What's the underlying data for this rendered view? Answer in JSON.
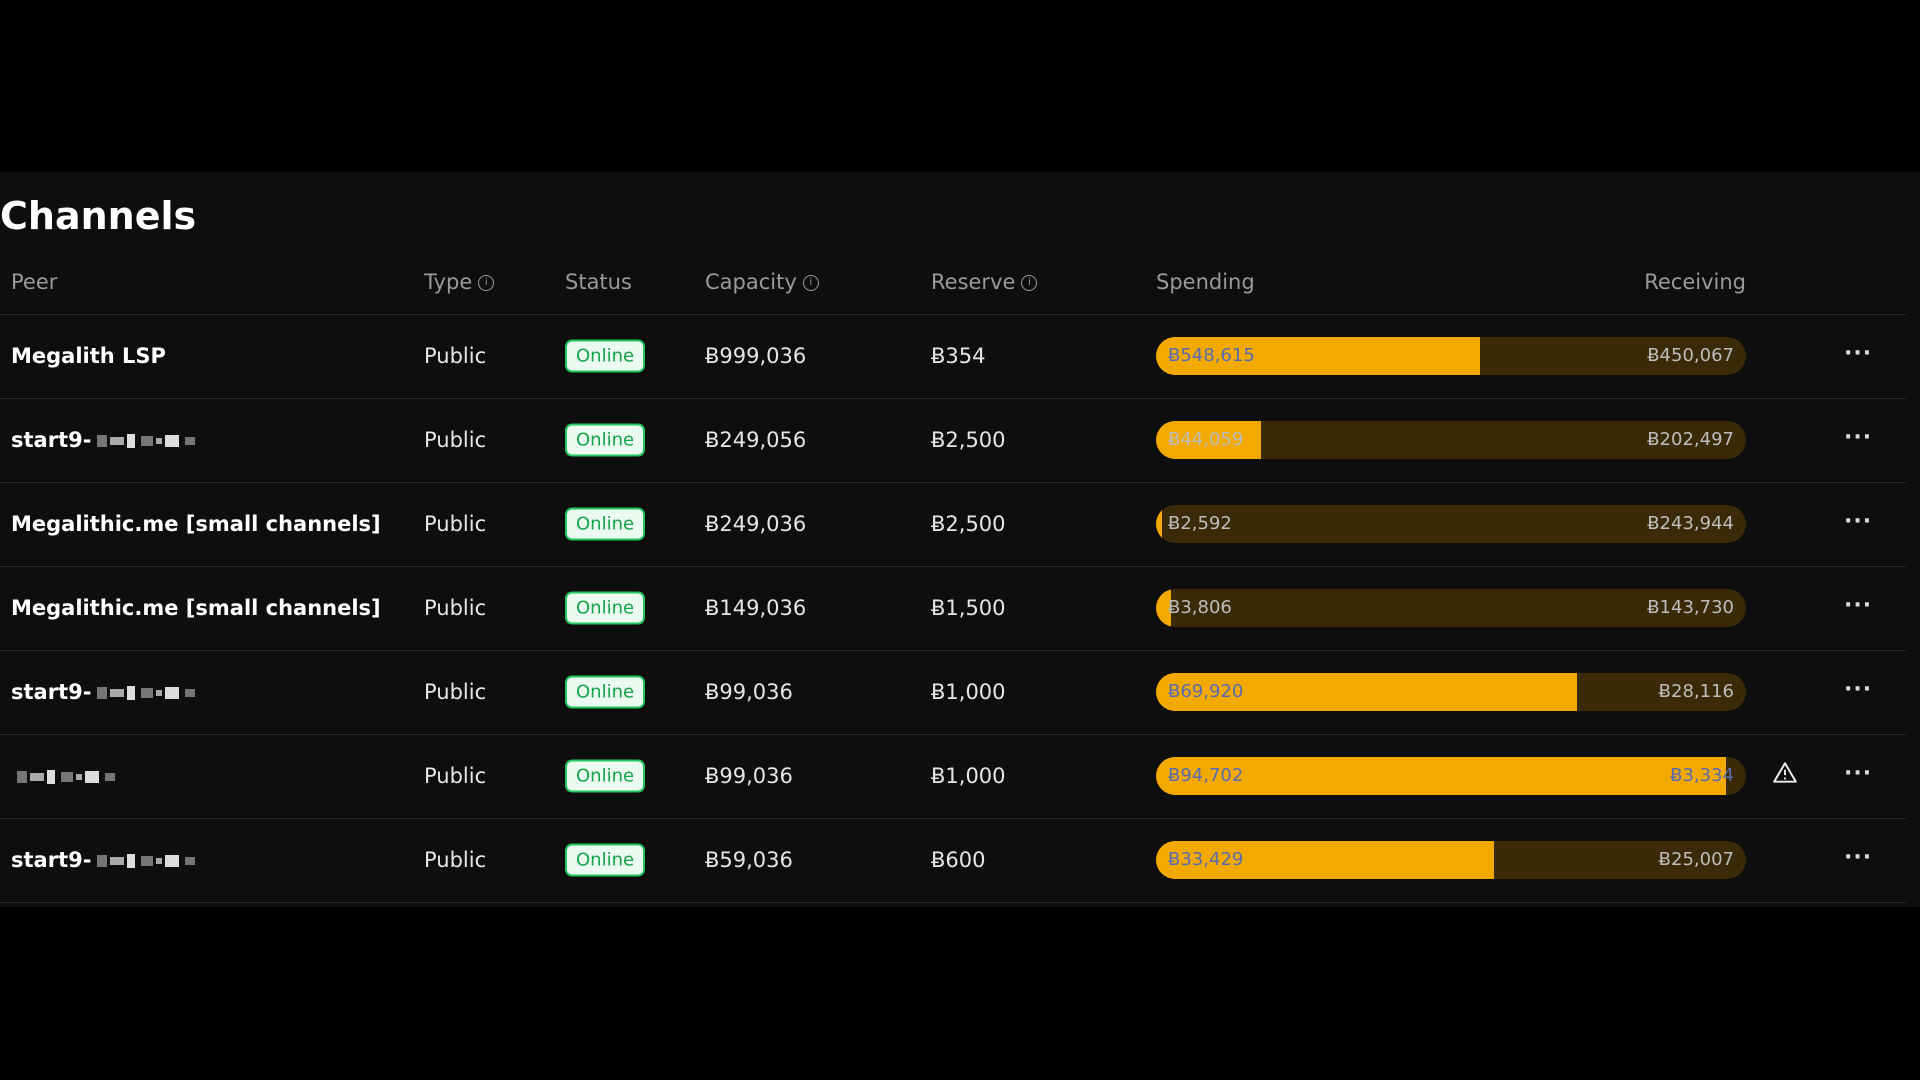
{
  "title": "Channels",
  "table": {
    "headers": [
      "Peer",
      "Type",
      "Status",
      "Capacity",
      "Reserve",
      "Spending",
      "Receiving"
    ],
    "rows": [
      {
        "peer": "Megalith LSP",
        "type": "Public",
        "status": "Online",
        "capacity": "Ƀ999,036",
        "reserve": "Ƀ354",
        "spending": {
          "value": 548615,
          "label": "Ƀ548,615"
        },
        "receiving": {
          "value": 450067,
          "label": "Ƀ450,067"
        }
      },
      {
        "peer": "start9-",
        "type": "Public",
        "status": "Online",
        "capacity": "Ƀ249,056",
        "reserve": "Ƀ2,500",
        "spending": {
          "value": 44059,
          "label": "Ƀ44,059"
        },
        "receiving": {
          "value": 202497,
          "label": "Ƀ202,497"
        }
      },
      {
        "peer": "Megalithic.me [small channels]",
        "type": "Public",
        "status": "Online",
        "capacity": "Ƀ249,036",
        "reserve": "Ƀ2,500",
        "spending": {
          "value": 2592,
          "label": "Ƀ2,592"
        },
        "receiving": {
          "value": 243944,
          "label": "Ƀ243,944"
        }
      },
      {
        "peer": "Megalithic.me [small channels]",
        "type": "Public",
        "status": "Online",
        "capacity": "Ƀ149,036",
        "reserve": "Ƀ1,500",
        "spending": {
          "value": 3806,
          "label": "Ƀ3,806"
        },
        "receiving": {
          "value": 143730,
          "label": "Ƀ143,730"
        }
      },
      {
        "peer": "start9-",
        "type": "Public",
        "status": "Online",
        "capacity": "Ƀ99,036",
        "reserve": "Ƀ1,000",
        "spending": {
          "value": 69920,
          "label": "Ƀ69,920"
        },
        "receiving": {
          "value": 28116,
          "label": "Ƀ28,116"
        }
      },
      {
        "type": "Public",
        "status": "Online",
        "capacity": "Ƀ99,036",
        "reserve": "Ƀ1,000",
        "spending": {
          "value": 94702,
          "label": "Ƀ94,702"
        },
        "receiving": {
          "value": 3334,
          "label": "Ƀ3,334"
        },
        "warning": true
      },
      {
        "peer": "start9-",
        "type": "Public",
        "status": "Online",
        "capacity": "Ƀ59,036",
        "reserve": "Ƀ600",
        "spending": {
          "value": 33429,
          "label": "Ƀ33,429"
        },
        "receiving": {
          "value": 25007,
          "label": "Ƀ25,007"
        }
      }
    ]
  }
}
